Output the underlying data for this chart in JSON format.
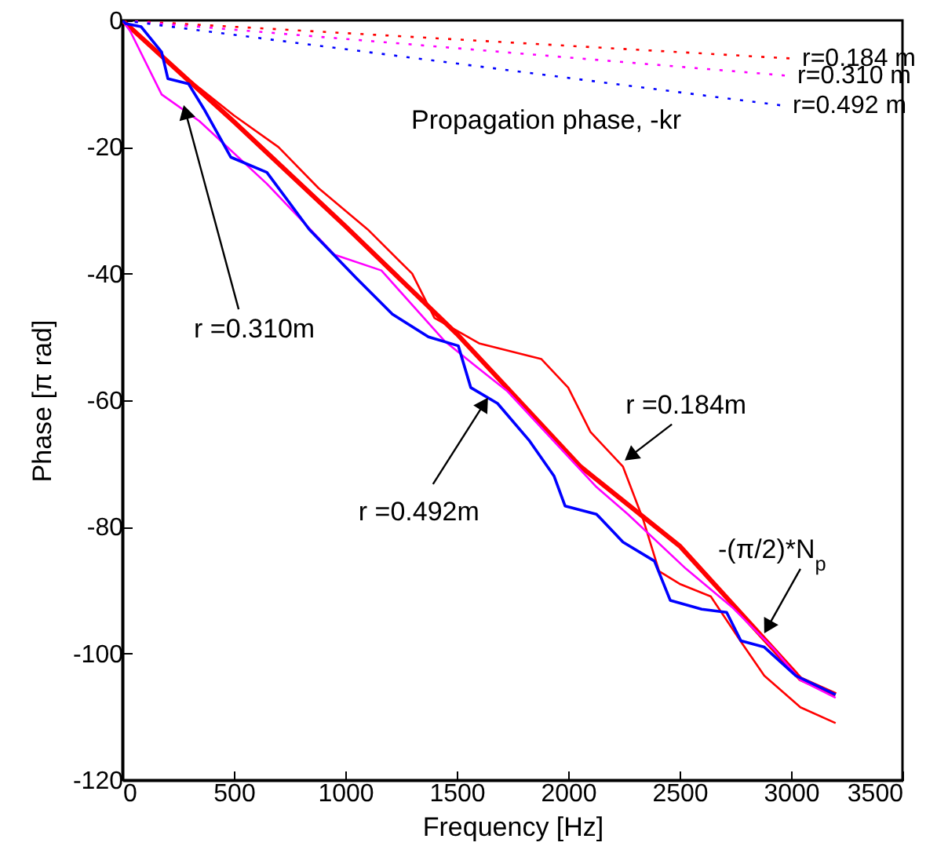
{
  "chart_data": {
    "type": "line",
    "xlabel": "Frequency [Hz]",
    "ylabel": "Phase [π rad]",
    "xlim": [
      0,
      3500
    ],
    "ylim": [
      -120,
      0
    ],
    "xticks": [
      0,
      500,
      1000,
      1500,
      2000,
      2500,
      3000,
      3500
    ],
    "yticks": [
      -120,
      -100,
      -80,
      -60,
      -40,
      -20,
      0
    ],
    "grid": false,
    "marker": "none",
    "line_style": "solid",
    "annotations": [
      "Propagation phase, -kr",
      {
        "text": "r =0.310m",
        "x": 275,
        "y": -13.4
      },
      {
        "text": "r =0.492m",
        "x": 1640,
        "y": -59.6
      },
      {
        "text": "r =0.184m",
        "x": 2254,
        "y": -69.5
      },
      {
        "text": "-(π/2)*N$_{p}$",
        "x": 2880,
        "y": -96.8
      }
    ],
    "series": [
      {
        "name": "r=0.184 m",
        "color": "#ff0000",
        "line_style": "dotted",
        "x": [
          0,
          2993
        ],
        "values": [
          0,
          -6
        ]
      },
      {
        "name": "r=0.310 m",
        "color": "#ff00ff",
        "line_style": "dotted",
        "x": [
          0,
          2972
        ],
        "values": [
          0,
          -8.7
        ]
      },
      {
        "name": "r=0.492 m",
        "color": "#0000ff",
        "line_style": "dotted",
        "x": [
          0,
          2951
        ],
        "values": [
          0,
          -13.4
        ]
      },
      {
        "color": "#ff0000",
        "x": [
          0,
          500,
          1000,
          1500,
          2056,
          2500,
          3042,
          3200
        ],
        "values": [
          0,
          -16,
          -32.5,
          -49.5,
          -70.5,
          -83,
          -104,
          -106.5
        ]
      },
      {
        "color": "#ff0000",
        "x": [
          0,
          250,
          500,
          700,
          880,
          1100,
          1300,
          1400,
          1600,
          1880,
          2000,
          2100,
          2246,
          2338,
          2408,
          2500,
          2640,
          2782,
          2880,
          3042,
          3200
        ],
        "values": [
          0,
          -8,
          -15,
          -20,
          -26.5,
          -33,
          -40,
          -47,
          -51,
          -53.5,
          -58,
          -65,
          -70.5,
          -79,
          -87,
          -89,
          -91,
          -98.5,
          -103.5,
          -108.5,
          -111
        ]
      },
      {
        "color": "#ff00ff",
        "x": [
          0,
          35,
          176,
          345,
          648,
          951,
          1162,
          1444,
          1585,
          1725,
          2127,
          2268,
          2528,
          2739,
          2923,
          3042,
          3200
        ],
        "values": [
          0,
          -1.7,
          -11.7,
          -15.9,
          -25.8,
          -37,
          -39.5,
          -50.6,
          -54.6,
          -58.5,
          -73.7,
          -78,
          -86.6,
          -92.8,
          -99.3,
          -104.2,
          -107
        ]
      },
      {
        "color": "#0000ff",
        "x": [
          0,
          14,
          84,
          176,
          204,
          296,
          366,
          486,
          648,
          838,
          1049,
          1211,
          1373,
          1507,
          1563,
          1683,
          1824,
          1937,
          1986,
          2127,
          2246,
          2387,
          2458,
          2599,
          2711,
          2775,
          2880,
          3021,
          3200
        ],
        "values": [
          0,
          -0.5,
          -1,
          -5,
          -9.2,
          -10,
          -14,
          -21.6,
          -24,
          -33,
          -40.7,
          -46.4,
          -50,
          -51.4,
          -58,
          -60.5,
          -66.3,
          -72,
          -76.7,
          -78,
          -82.4,
          -85.4,
          -91.6,
          -93,
          -93.5,
          -98,
          -99,
          -103.5,
          -106.5
        ]
      }
    ]
  }
}
